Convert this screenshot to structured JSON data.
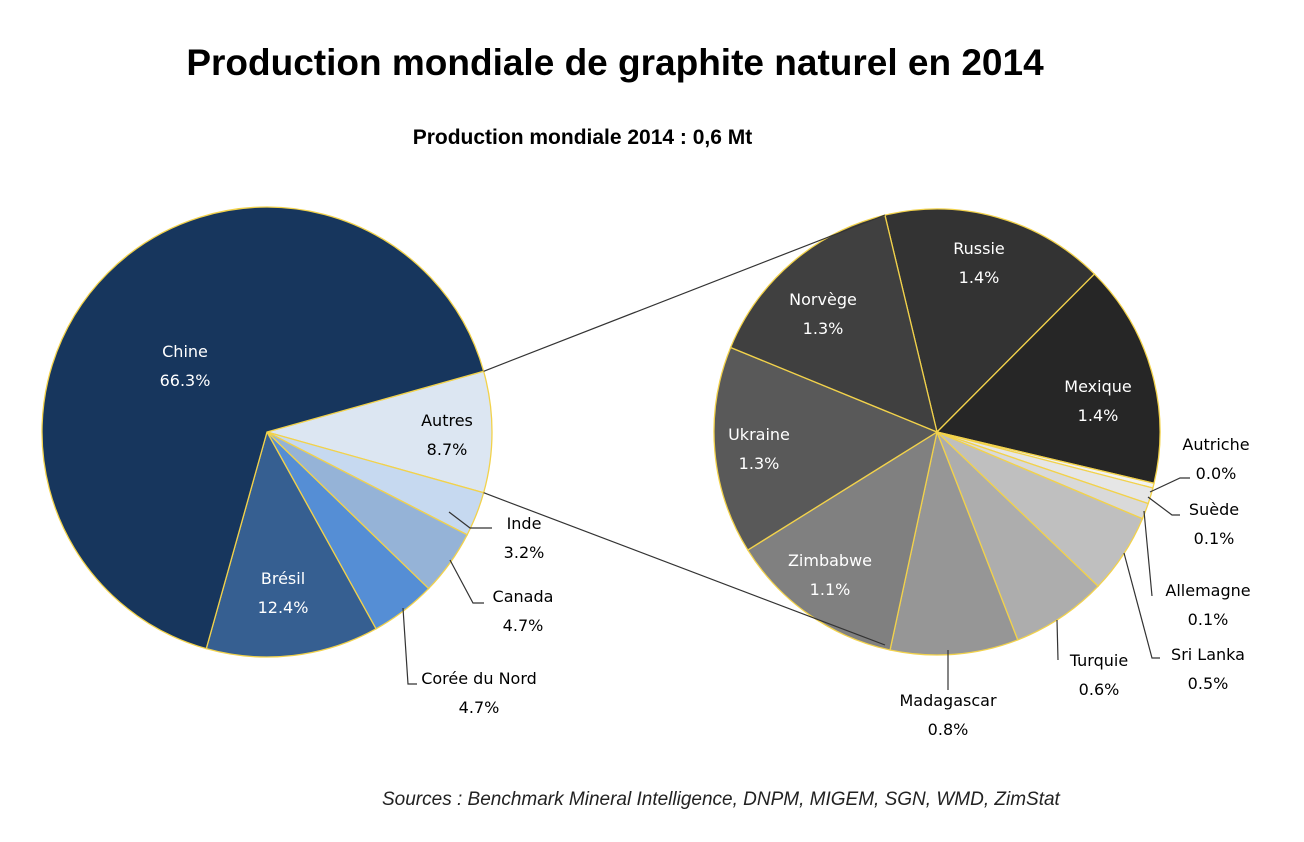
{
  "chart_data": [
    {
      "type": "pie",
      "title": "Production mondiale de graphite naturel en 2014",
      "subtitle": "Production mondiale 2014 : 0,6 Mt",
      "slices": [
        {
          "label": "Autres",
          "value": 8.7,
          "display": "8.7%",
          "color": "#DCE6F2"
        },
        {
          "label": "Inde",
          "value": 3.2,
          "display": "3.2%",
          "color": "#C6D9F0"
        },
        {
          "label": "Canada",
          "value": 4.7,
          "display": "4.7%",
          "color": "#95B3D7"
        },
        {
          "label": "Corée du Nord",
          "value": 4.7,
          "display": "4.7%",
          "color": "#558ED5"
        },
        {
          "label": "Brésil",
          "value": 12.4,
          "display": "12.4%",
          "color": "#365F91"
        },
        {
          "label": "Chine",
          "value": 66.3,
          "display": "66.3%",
          "color": "#17365D"
        }
      ]
    },
    {
      "type": "pie",
      "detail_of": "Autres",
      "slices": [
        {
          "label": "Russie",
          "value": 1.4,
          "display": "1.4%",
          "color": "#333333"
        },
        {
          "label": "Mexique",
          "value": 1.4,
          "display": "1.4%",
          "color": "#262626"
        },
        {
          "label": "Autriche",
          "value": 0.0,
          "display": "0.0%",
          "color": "#F2F2F2"
        },
        {
          "label": "Suède",
          "value": 0.1,
          "display": "0.1%",
          "color": "#E6E6E6"
        },
        {
          "label": "Allemagne",
          "value": 0.1,
          "display": "0.1%",
          "color": "#D9D9D9"
        },
        {
          "label": "Sri Lanka",
          "value": 0.5,
          "display": "0.5%",
          "color": "#BFBFBF"
        },
        {
          "label": "Turquie",
          "value": 0.6,
          "display": "0.6%",
          "color": "#ADADAD"
        },
        {
          "label": "Madagascar",
          "value": 0.8,
          "display": "0.8%",
          "color": "#969696"
        },
        {
          "label": "Zimbabwe",
          "value": 1.1,
          "display": "1.1%",
          "color": "#808080"
        },
        {
          "label": "Ukraine",
          "value": 1.3,
          "display": "1.3%",
          "color": "#595959"
        },
        {
          "label": "Norvège",
          "value": 1.3,
          "display": "1.3%",
          "color": "#404040"
        }
      ]
    }
  ],
  "source": "Sources : Benchmark Mineral Intelligence,  DNPM, MIGEM, SGN, WMD, ZimStat",
  "border_color": "#F2D24B"
}
